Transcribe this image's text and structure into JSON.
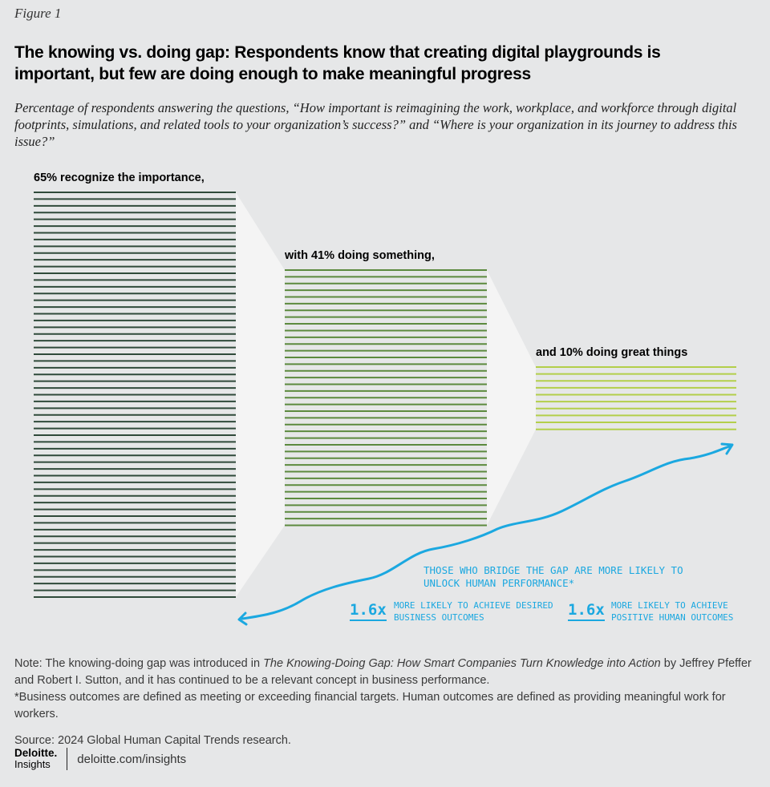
{
  "figure_label": "Figure 1",
  "title": "The knowing vs. doing gap: Respondents know that creating digital playgrounds is important, but few are doing enough to make meaningful progress",
  "subtitle": "Percentage of respondents answering the questions, “How important is reimagining the work, workplace, and workforce through digital footprints, simulations, and related tools to your organization’s success?” and “Where is your organization in its journey to address this issue?”",
  "chart_data": {
    "type": "bar",
    "categories": [
      "65% recognize the importance,",
      "with 41% doing something,",
      "and 10% doing great things"
    ],
    "values": [
      65,
      41,
      10
    ],
    "ylim": [
      0,
      100
    ],
    "colors": [
      "#2f4a3a",
      "#5c8a3e",
      "#b3cf4a"
    ],
    "connector_color": "#f4f4f4"
  },
  "callout": {
    "heading": "THOSE WHO BRIDGE THE GAP ARE MORE LIKELY TO UNLOCK HUMAN PERFORMANCE*",
    "stat1_value": "1.6x",
    "stat1_text": "MORE LIKELY TO ACHIEVE DESIRED BUSINESS OUTCOMES",
    "stat2_value": "1.6x",
    "stat2_text": "MORE LIKELY TO ACHIEVE POSITIVE HUMAN OUTCOMES",
    "color": "#1ba8e0"
  },
  "notes": {
    "note_prefix": "Note: The knowing-doing gap was introduced in ",
    "note_book": "The Knowing-Doing Gap: How Smart Companies Turn Knowledge into Action",
    "note_suffix": " by Jeffrey Pfeffer and Robert I. Sutton, and it has continued to be a relevant concept in business performance.",
    "footnote": "*Business outcomes are defined as meeting or exceeding financial targets. Human outcomes are defined as providing meaningful work for workers.",
    "source": "Source: 2024 Global Human Capital Trends research."
  },
  "footer": {
    "brand_name": "Deloitte.",
    "brand_sub": "Insights",
    "url": "deloitte.com/insights"
  }
}
